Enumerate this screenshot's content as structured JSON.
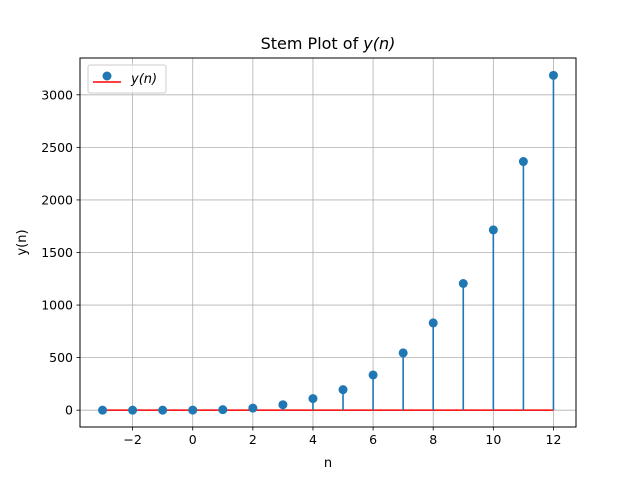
{
  "chart_data": {
    "type": "stem",
    "title": "Stem Plot of y(n)",
    "title_prefix": "Stem Plot of ",
    "title_math": "y(n)",
    "xlabel": "n",
    "ylabel": "y(n)",
    "xlim": [
      -3.75,
      12.75
    ],
    "ylim": [
      -160,
      3350
    ],
    "x_ticks": [
      -2,
      0,
      2,
      4,
      6,
      8,
      10,
      12
    ],
    "x_tick_labels": [
      "−2",
      "0",
      "2",
      "4",
      "6",
      "8",
      "10",
      "12"
    ],
    "y_ticks": [
      0,
      500,
      1000,
      1500,
      2000,
      2500,
      3000
    ],
    "y_tick_labels": [
      "0",
      "500",
      "1000",
      "1500",
      "2000",
      "2500",
      "3000"
    ],
    "grid": true,
    "legend": {
      "position": "upper-left",
      "entries": [
        "y(n)"
      ]
    },
    "colors": {
      "stem": "#1f77b4",
      "baseline": "#ff0000",
      "grid": "#b0b0b0"
    },
    "baseline": 0,
    "series": [
      {
        "name": "y(n)",
        "x": [
          -3,
          -2,
          -1,
          0,
          1,
          2,
          3,
          4,
          5,
          6,
          7,
          8,
          9,
          10,
          11,
          12
        ],
        "y": [
          0,
          0,
          0,
          1,
          5,
          20,
          52,
          110,
          195,
          335,
          545,
          830,
          1205,
          1715,
          2365,
          3185
        ]
      }
    ]
  }
}
